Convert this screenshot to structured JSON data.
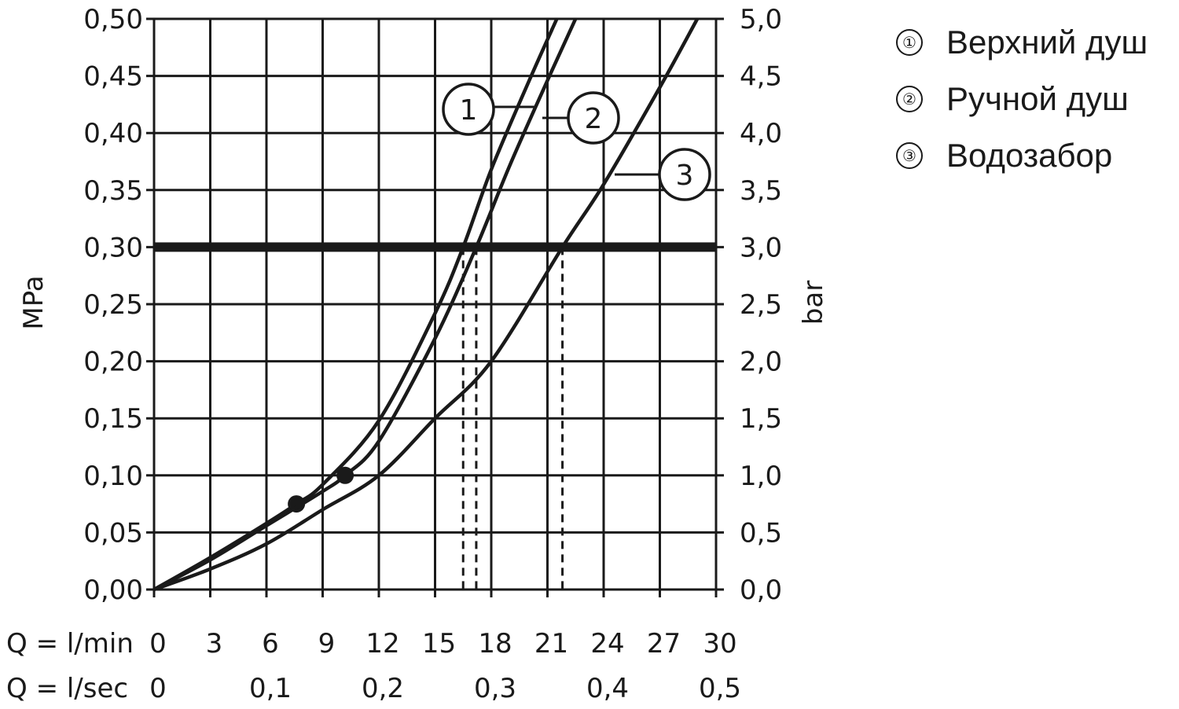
{
  "chart_data": {
    "type": "line",
    "y_left_label": "MPa",
    "y_right_label": "bar",
    "x_primary_label": "Q = l/min",
    "x_secondary_label": "Q = l/sec",
    "x_ticks": [
      "0",
      "3",
      "6",
      "9",
      "12",
      "15",
      "18",
      "21",
      "24",
      "27",
      "30"
    ],
    "x_secondary_ticks": [
      "0",
      "0,1",
      "0,2",
      "0,3",
      "0,4",
      "0,5"
    ],
    "x_secondary_values": [
      0,
      6,
      12,
      18,
      24,
      30
    ],
    "y_left_ticks": [
      "0,00",
      "0,05",
      "0,10",
      "0,15",
      "0,20",
      "0,25",
      "0,30",
      "0,35",
      "0,40",
      "0,45",
      "0,50"
    ],
    "y_right_ticks": [
      "0,0",
      "0,5",
      "1,0",
      "1,5",
      "2,0",
      "2,5",
      "3,0",
      "3,5",
      "4,0",
      "4,5",
      "5,0"
    ],
    "xlim": [
      0,
      30
    ],
    "ylim": [
      0,
      0.5
    ],
    "grid": true,
    "reference_line": {
      "y": 0.3
    },
    "series": [
      {
        "name": "Верхний душ",
        "label": "1",
        "x": [
          0,
          3,
          6,
          7.6,
          9,
          12,
          15,
          16.5,
          18,
          20,
          21.5
        ],
        "y": [
          0,
          0.028,
          0.058,
          0.075,
          0.092,
          0.148,
          0.242,
          0.3,
          0.368,
          0.445,
          0.5
        ],
        "marker": {
          "x": 7.6,
          "y": 0.075
        },
        "drop_x": 16.5
      },
      {
        "name": "Ручной душ",
        "label": "2",
        "x": [
          0,
          3,
          6,
          9,
          10.2,
          12,
          15,
          17.2,
          19,
          21,
          22.5
        ],
        "y": [
          0,
          0.026,
          0.056,
          0.086,
          0.1,
          0.13,
          0.22,
          0.3,
          0.372,
          0.446,
          0.5
        ],
        "marker": {
          "x": 10.2,
          "y": 0.1
        },
        "drop_x": 17.2
      },
      {
        "name": "Водозабор",
        "label": "3",
        "x": [
          0,
          3,
          6,
          9,
          12,
          15,
          18,
          21.8,
          24,
          27,
          29
        ],
        "y": [
          0,
          0.018,
          0.04,
          0.07,
          0.1,
          0.15,
          0.2,
          0.3,
          0.355,
          0.44,
          0.5
        ],
        "drop_x": 21.8
      }
    ]
  },
  "legend": [
    {
      "marker": "①",
      "label": "Верхний душ"
    },
    {
      "marker": "②",
      "label": "Ручной душ"
    },
    {
      "marker": "③",
      "label": "Водозабор"
    }
  ]
}
